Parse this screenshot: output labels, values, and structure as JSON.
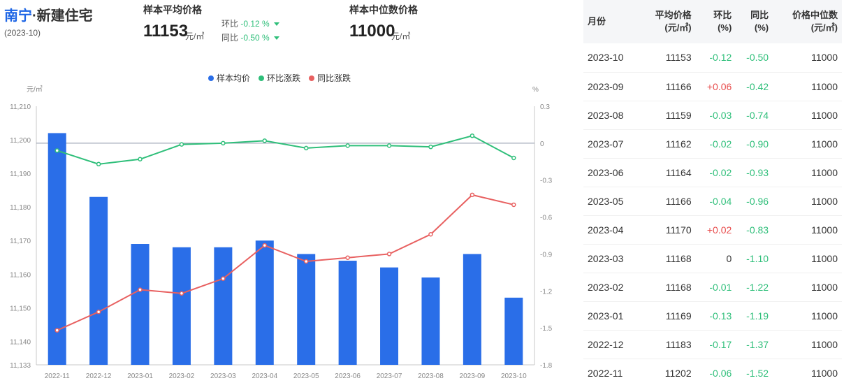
{
  "header": {
    "city": "南宁",
    "separator": "·",
    "category": "新建住宅",
    "date": "(2023-10)"
  },
  "kpi_avg": {
    "title": "样本平均价格",
    "value": "11153",
    "unit": "元/㎡",
    "mom_label": "环比",
    "mom_value": "-0.12 %",
    "yoy_label": "同比",
    "yoy_value": "-0.50 %"
  },
  "kpi_median": {
    "title": "样本中位数价格",
    "value": "11000",
    "unit": "元/㎡"
  },
  "colors": {
    "bar": "#2a6ee8",
    "mom_line": "#2fbf7a",
    "yoy_line": "#e86060",
    "negative": "#2fbf7a",
    "positive": "#e84d4d"
  },
  "chart_data": {
    "type": "bar",
    "categories": [
      "2022-11",
      "2022-12",
      "2023-01",
      "2023-02",
      "2023-03",
      "2023-04",
      "2023-05",
      "2023-06",
      "2023-07",
      "2023-08",
      "2023-09",
      "2023-10"
    ],
    "series": [
      {
        "name": "样本均价",
        "type": "bar",
        "axis": "left",
        "values": [
          11202,
          11183,
          11169,
          11168,
          11168,
          11170,
          11166,
          11164,
          11162,
          11159,
          11166,
          11153
        ]
      },
      {
        "name": "环比涨跌",
        "type": "line",
        "axis": "right",
        "values": [
          -0.06,
          -0.17,
          -0.13,
          -0.01,
          0,
          0.02,
          -0.04,
          -0.02,
          -0.02,
          -0.03,
          0.06,
          -0.12
        ]
      },
      {
        "name": "同比涨跌",
        "type": "line",
        "axis": "right",
        "values": [
          -1.52,
          -1.37,
          -1.19,
          -1.22,
          -1.1,
          -0.83,
          -0.96,
          -0.93,
          -0.9,
          -0.74,
          -0.42,
          -0.5
        ]
      }
    ],
    "y_left": {
      "label": "元/㎡",
      "ylim": [
        11133,
        11210
      ],
      "ticks": [
        "11,210",
        "11,200",
        "11,190",
        "11,180",
        "11,170",
        "11,160",
        "11,150",
        "11,140",
        "11,133"
      ],
      "tick_values": [
        11210,
        11200,
        11190,
        11180,
        11170,
        11160,
        11150,
        11140,
        11133
      ]
    },
    "y_right": {
      "label": "%",
      "ylim": [
        -1.8,
        0.3
      ],
      "ticks": [
        "0.3",
        "0",
        "-0.3",
        "-0.6",
        "-0.9",
        "-1.2",
        "-1.5",
        "-1.8"
      ],
      "tick_values": [
        0.3,
        0,
        -0.3,
        -0.6,
        -0.9,
        -1.2,
        -1.5,
        -1.8
      ]
    },
    "legend_position": "top-center",
    "grid": false
  },
  "table": {
    "headers": [
      [
        "月份"
      ],
      [
        "平均价格",
        "(元/㎡)"
      ],
      [
        "环比",
        "(%)"
      ],
      [
        "同比",
        "(%)"
      ],
      [
        "价格中位数",
        "(元/㎡)"
      ]
    ],
    "rows": [
      [
        "2023-10",
        "11153",
        "-0.12",
        "-0.50",
        "11000"
      ],
      [
        "2023-09",
        "11166",
        "+0.06",
        "-0.42",
        "11000"
      ],
      [
        "2023-08",
        "11159",
        "-0.03",
        "-0.74",
        "11000"
      ],
      [
        "2023-07",
        "11162",
        "-0.02",
        "-0.90",
        "11000"
      ],
      [
        "2023-06",
        "11164",
        "-0.02",
        "-0.93",
        "11000"
      ],
      [
        "2023-05",
        "11166",
        "-0.04",
        "-0.96",
        "11000"
      ],
      [
        "2023-04",
        "11170",
        "+0.02",
        "-0.83",
        "11000"
      ],
      [
        "2023-03",
        "11168",
        "0",
        "-1.10",
        "11000"
      ],
      [
        "2023-02",
        "11168",
        "-0.01",
        "-1.22",
        "11000"
      ],
      [
        "2023-01",
        "11169",
        "-0.13",
        "-1.19",
        "11000"
      ],
      [
        "2022-12",
        "11183",
        "-0.17",
        "-1.37",
        "11000"
      ],
      [
        "2022-11",
        "11202",
        "-0.06",
        "-1.52",
        "11000"
      ]
    ]
  }
}
